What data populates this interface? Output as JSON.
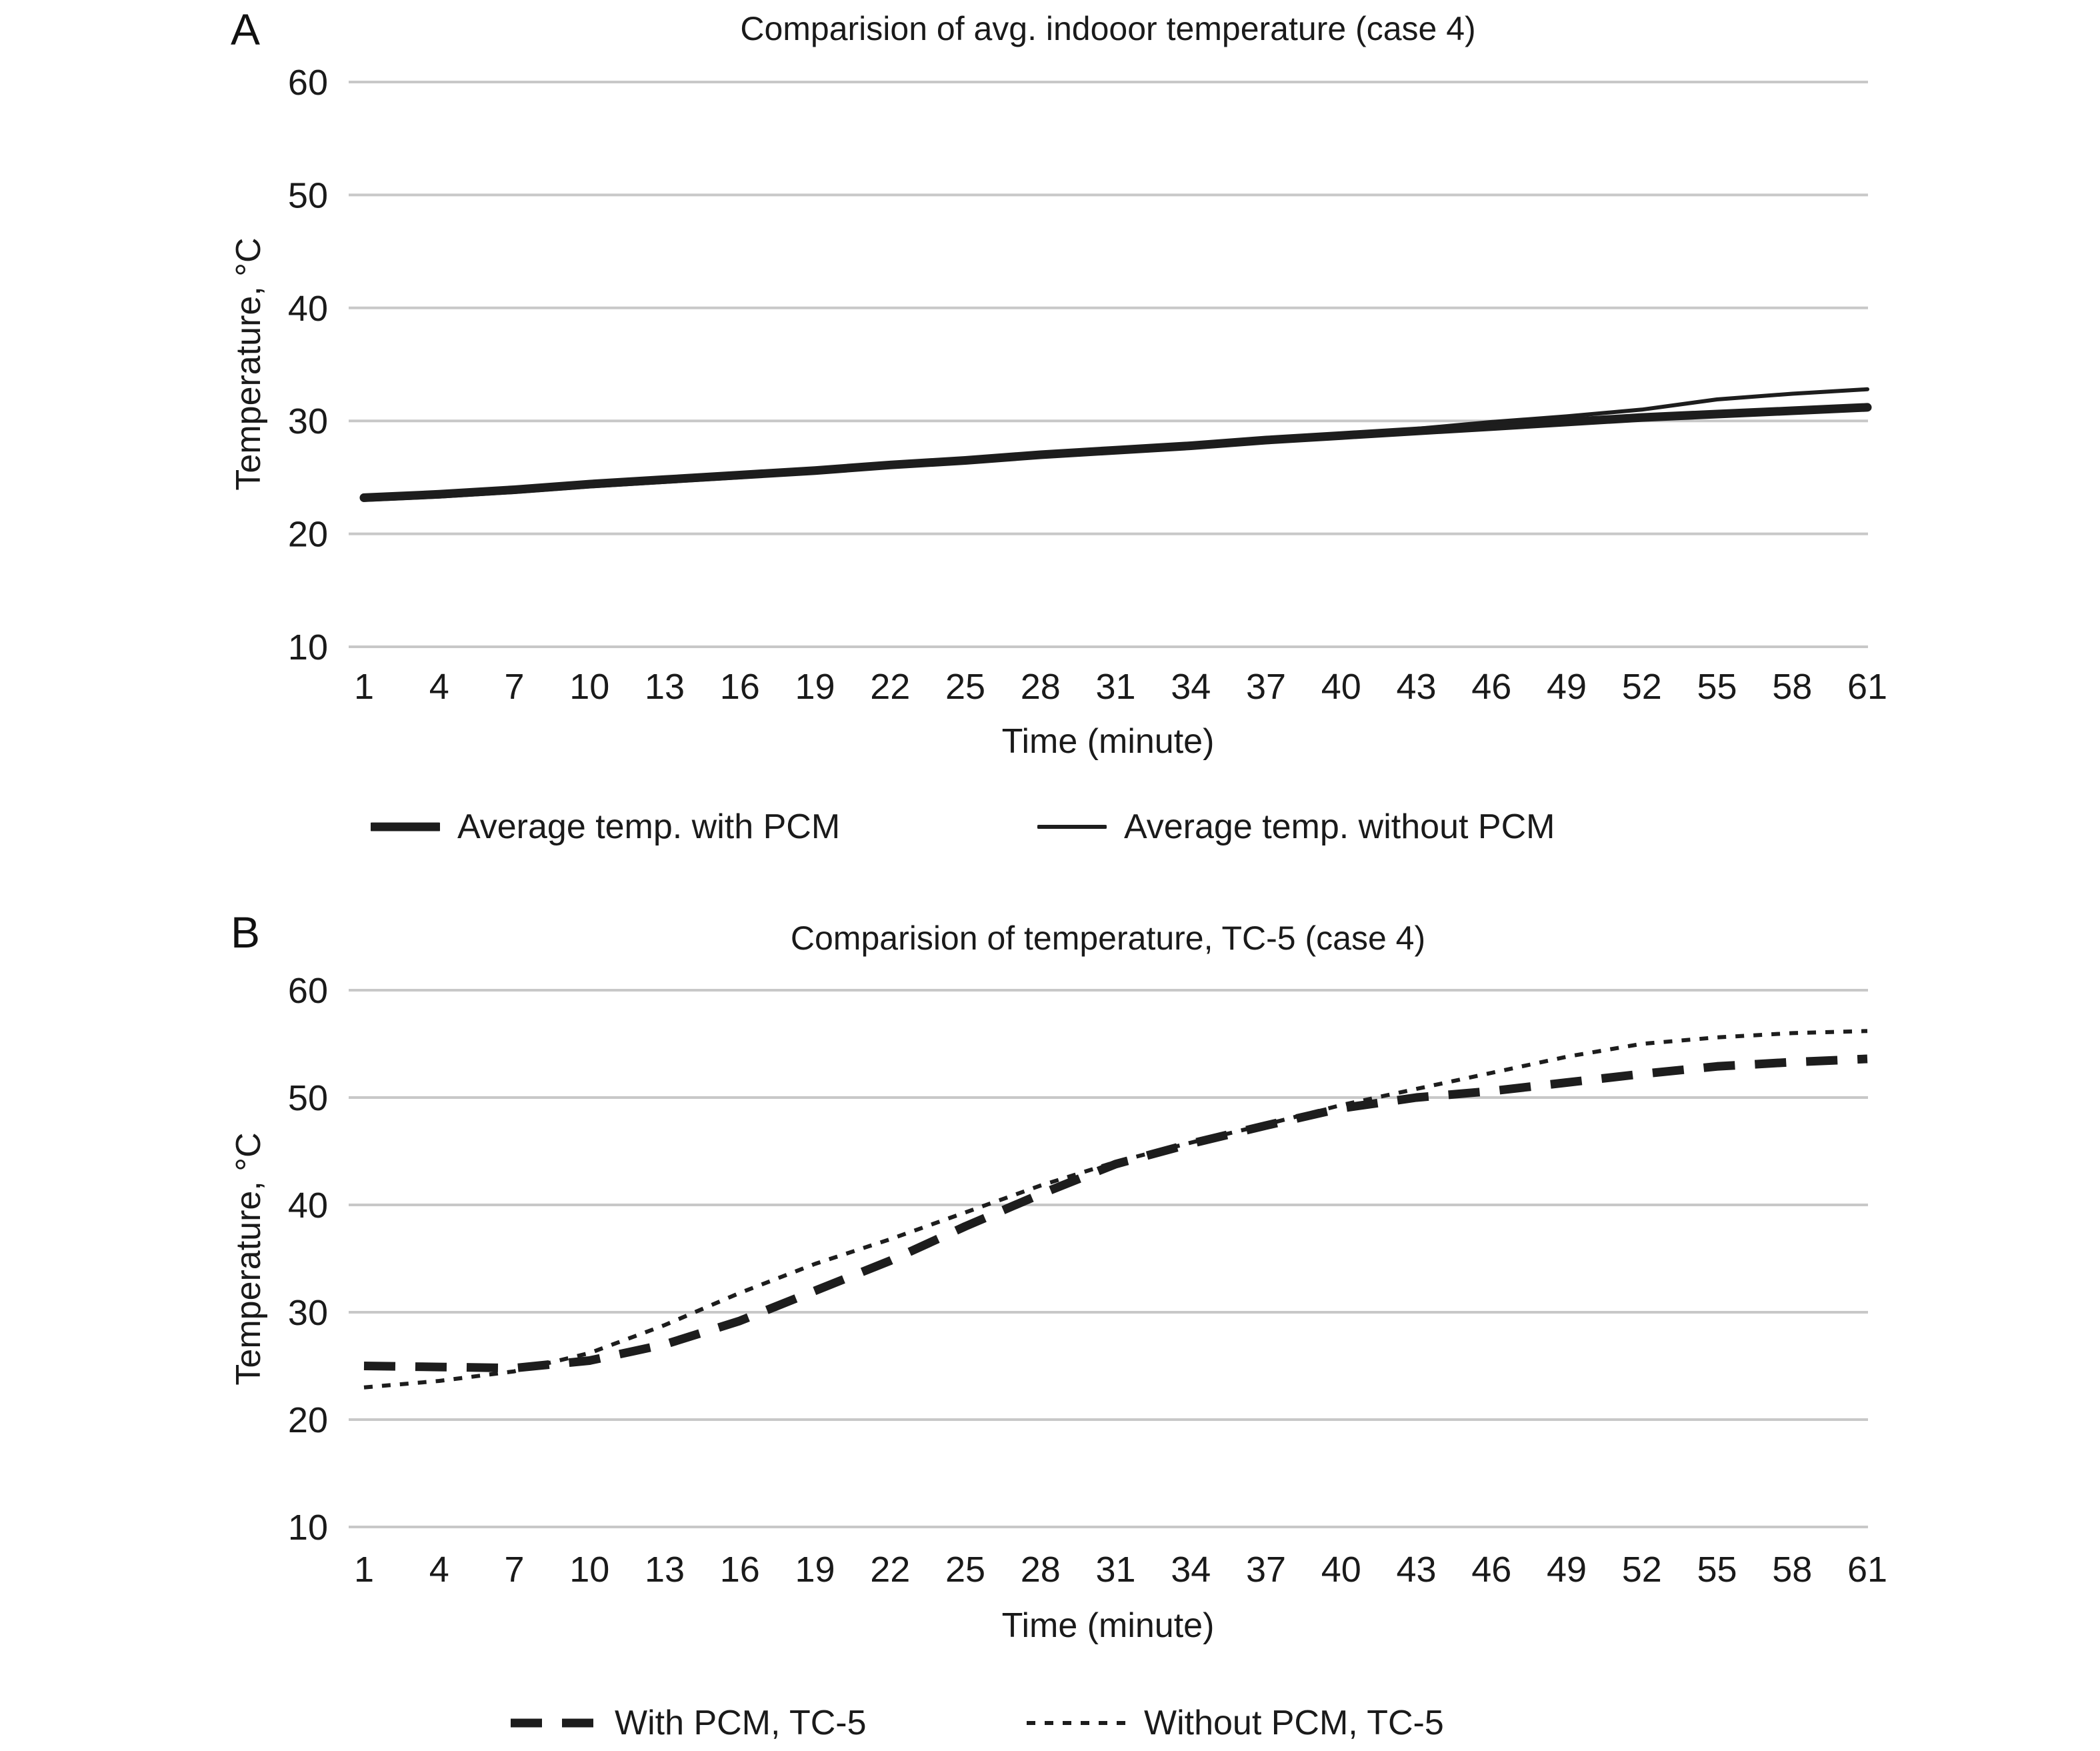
{
  "figure": {
    "background": "#ffffff",
    "ink_color": "#1d1d1d",
    "grid_color": "#c8c8c8",
    "text_color": "#1a1a1a"
  },
  "chart_data": [
    {
      "type": "line",
      "panel_label": "A",
      "title": "Comparision of avg. indooor temperature (case 4)",
      "xlabel": "Time (minute)",
      "ylabel": "Temperature, °C",
      "x": [
        1,
        4,
        7,
        10,
        13,
        16,
        19,
        22,
        25,
        28,
        31,
        34,
        37,
        40,
        43,
        46,
        49,
        52,
        55,
        58,
        61
      ],
      "xticks": [
        1,
        4,
        7,
        10,
        13,
        16,
        19,
        22,
        25,
        28,
        31,
        34,
        37,
        40,
        43,
        46,
        49,
        52,
        55,
        58,
        61
      ],
      "yticks": [
        10,
        20,
        30,
        40,
        50,
        60
      ],
      "ylim": [
        10,
        60
      ],
      "grid": "horizontal",
      "legend_position": "bottom",
      "series": [
        {
          "name": "Average temp. with PCM",
          "line": "thick-solid",
          "values": [
            23.2,
            23.5,
            23.9,
            24.4,
            24.8,
            25.2,
            25.6,
            26.1,
            26.5,
            27.0,
            27.4,
            27.8,
            28.3,
            28.7,
            29.1,
            29.5,
            29.9,
            30.3,
            30.6,
            30.9,
            31.2
          ]
        },
        {
          "name": "Average temp. without PCM",
          "line": "thin-solid",
          "values": [
            23.0,
            23.3,
            23.7,
            24.2,
            24.6,
            25.0,
            25.5,
            26.0,
            26.5,
            27.0,
            27.5,
            27.9,
            28.4,
            28.8,
            29.3,
            29.9,
            30.4,
            31.0,
            31.9,
            32.4,
            32.8
          ]
        }
      ]
    },
    {
      "type": "line",
      "panel_label": "B",
      "title": "Comparision of temperature, TC-5 (case 4)",
      "xlabel": "Time (minute)",
      "ylabel": "Temperature, °C",
      "x": [
        1,
        4,
        7,
        10,
        13,
        16,
        19,
        22,
        25,
        28,
        31,
        34,
        37,
        40,
        43,
        46,
        49,
        52,
        55,
        58,
        61
      ],
      "xticks": [
        1,
        4,
        7,
        10,
        13,
        16,
        19,
        22,
        25,
        28,
        31,
        34,
        37,
        40,
        43,
        46,
        49,
        52,
        55,
        58,
        61
      ],
      "yticks": [
        10,
        20,
        30,
        40,
        50,
        60
      ],
      "ylim": [
        10,
        60
      ],
      "grid": "horizontal",
      "legend_position": "bottom",
      "series": [
        {
          "name": "With PCM, TC-5",
          "line": "thick-dashed",
          "values": [
            25.0,
            24.9,
            24.8,
            25.5,
            27.0,
            29.2,
            32.0,
            34.8,
            38.0,
            41.0,
            43.8,
            45.7,
            47.4,
            49.0,
            50.0,
            50.6,
            51.4,
            52.2,
            52.9,
            53.3,
            53.6
          ]
        },
        {
          "name": "Without PCM, TC-5",
          "line": "thin-dotted",
          "values": [
            23.0,
            23.6,
            24.5,
            26.2,
            28.8,
            31.8,
            34.5,
            36.8,
            39.3,
            41.8,
            44.0,
            45.8,
            47.5,
            49.3,
            50.8,
            52.3,
            53.8,
            55.0,
            55.6,
            56.0,
            56.2
          ]
        }
      ]
    }
  ]
}
